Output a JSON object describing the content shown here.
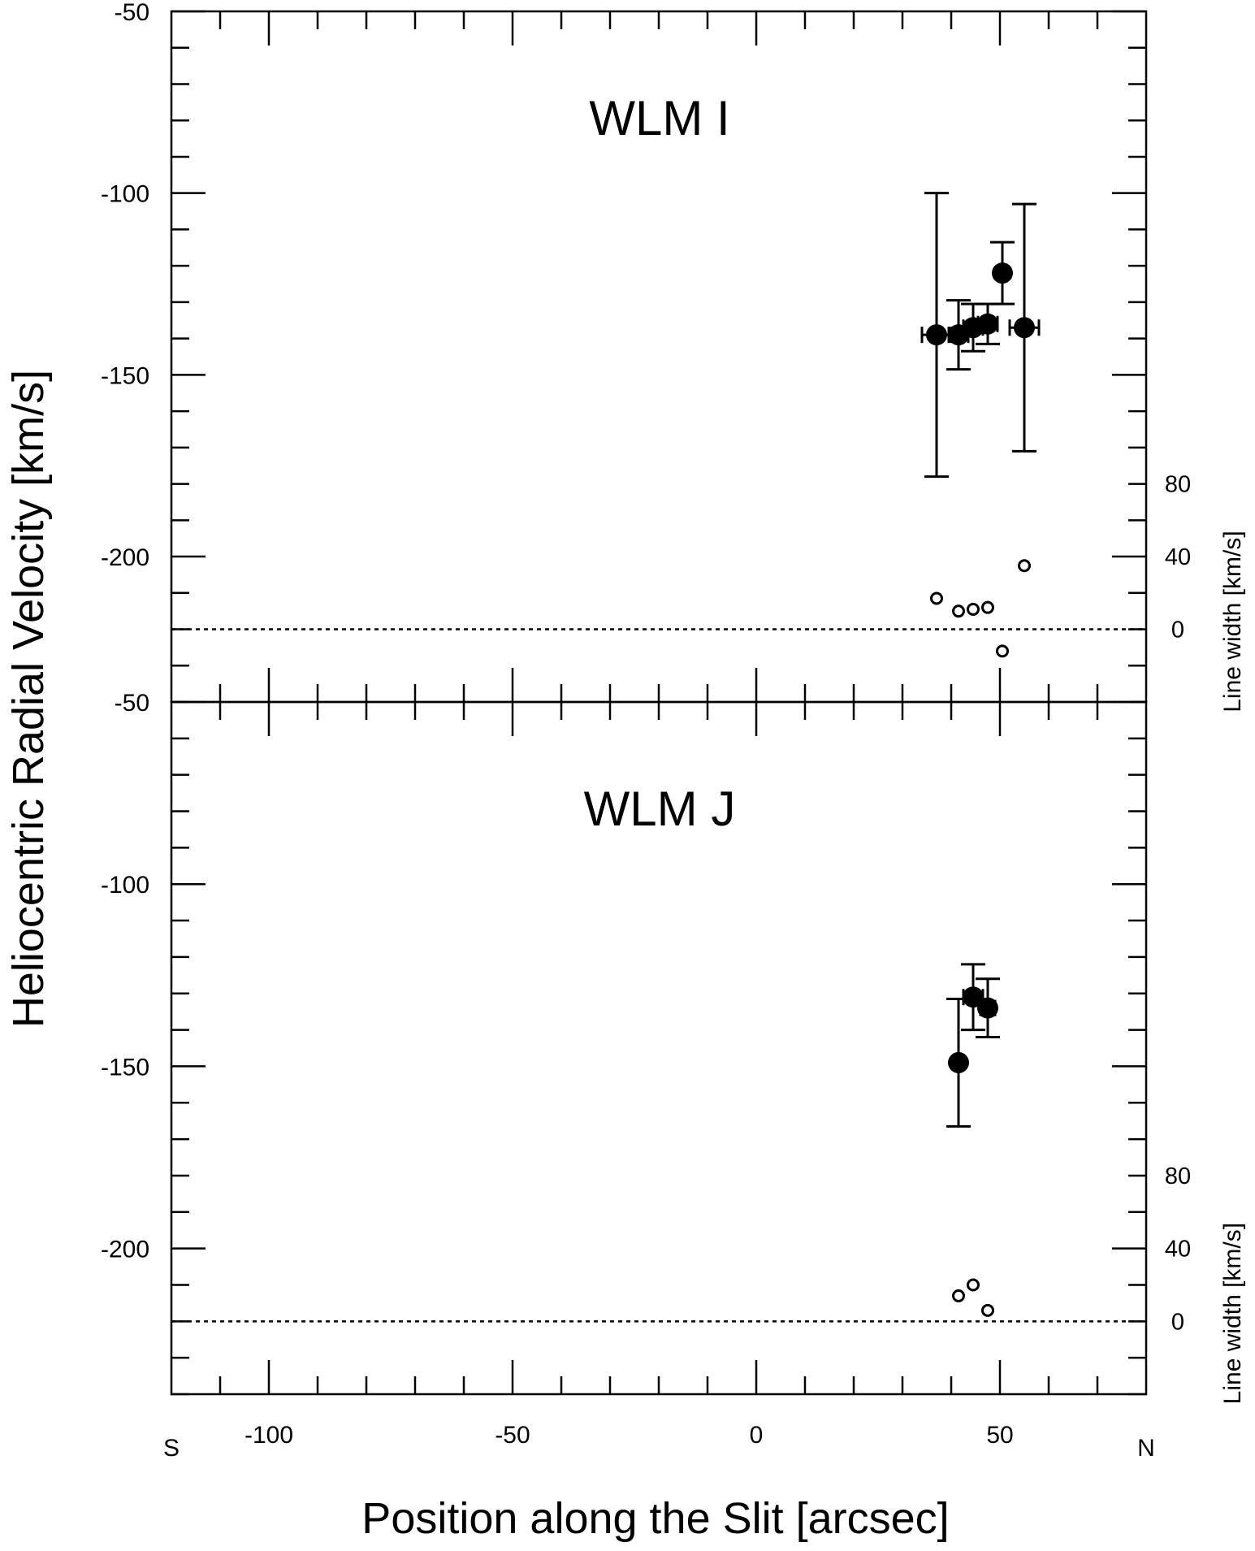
{
  "chart_data": {
    "type": "scatter",
    "xlabel": "Position along the Slit [arcsec]",
    "ylabel": "Heliocentric Radial Velocity [km/s]",
    "x_start_label": "S",
    "x_end_label": "N",
    "xlim": [
      -120,
      80
    ],
    "x_ticks": [
      -100,
      -50,
      0,
      50
    ],
    "x_tick_labels": [
      "-100",
      "-50",
      "0",
      "50"
    ],
    "panels": [
      {
        "title": "WLM I",
        "ylim": [
          -240,
          -50
        ],
        "y_ticks": [
          -50,
          -100,
          -150,
          -200
        ],
        "y_tick_labels": [
          "-50",
          "-100",
          "-150",
          "-200"
        ],
        "right_axis_title": "Line width [km/s]",
        "right_ticks": [
          0,
          40,
          80
        ],
        "right_tick_labels": [
          "0",
          "40",
          "80"
        ],
        "linewidth_zero_velocity": -220,
        "linewidth_scale_kms_per_kms": 0.5,
        "velocity_points": [
          {
            "x": 37,
            "y": -139,
            "yerr_low": 39,
            "yerr_high": 39,
            "xerr": 3
          },
          {
            "x": 41.5,
            "y": -139,
            "yerr_low": 9.5,
            "yerr_high": 9.5,
            "xerr": 2
          },
          {
            "x": 44.5,
            "y": -137,
            "yerr_low": 6.5,
            "yerr_high": 6.5,
            "xerr": 2
          },
          {
            "x": 47.5,
            "y": -136,
            "yerr_low": 5.5,
            "yerr_high": 5.5,
            "xerr": 2
          },
          {
            "x": 50.5,
            "y": -122,
            "yerr_low": 8.5,
            "yerr_high": 8.5,
            "xerr": 1
          },
          {
            "x": 55,
            "y": -137,
            "yerr_low": 34,
            "yerr_high": 34,
            "xerr": 3
          }
        ],
        "linewidth_points": [
          {
            "x": 37,
            "width": 17
          },
          {
            "x": 41.5,
            "width": 10
          },
          {
            "x": 44.5,
            "width": 11
          },
          {
            "x": 47.5,
            "width": 12
          },
          {
            "x": 50.5,
            "width": -12
          },
          {
            "x": 55,
            "width": 35
          }
        ]
      },
      {
        "title": "WLM J",
        "ylim": [
          -240,
          -50
        ],
        "y_ticks": [
          -50,
          -100,
          -150,
          -200
        ],
        "y_tick_labels": [
          "-50",
          "-100",
          "-150",
          "-200"
        ],
        "right_axis_title": "Line width [km/s]",
        "right_ticks": [
          0,
          40,
          80
        ],
        "right_tick_labels": [
          "0",
          "40",
          "80"
        ],
        "linewidth_zero_velocity": -220,
        "linewidth_scale_kms_per_kms": 0.5,
        "velocity_points": [
          {
            "x": 41.5,
            "y": -149,
            "yerr_low": 17.5,
            "yerr_high": 17.5,
            "xerr": 1
          },
          {
            "x": 44.5,
            "y": -131,
            "yerr_low": 9,
            "yerr_high": 9,
            "xerr": 2
          },
          {
            "x": 47.5,
            "y": -134,
            "yerr_low": 8,
            "yerr_high": 8,
            "xerr": 1.5
          }
        ],
        "linewidth_points": [
          {
            "x": 41.5,
            "width": 14
          },
          {
            "x": 44.5,
            "width": 20
          },
          {
            "x": 47.5,
            "width": 6
          }
        ]
      }
    ]
  }
}
